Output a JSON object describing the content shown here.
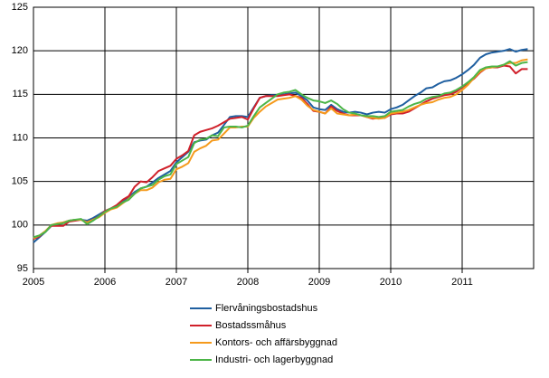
{
  "chart_data": {
    "type": "line",
    "x": [
      2005,
      2005.083,
      2005.167,
      2005.25,
      2005.333,
      2005.417,
      2005.5,
      2005.583,
      2005.667,
      2005.75,
      2005.833,
      2005.917,
      2006,
      2006.083,
      2006.167,
      2006.25,
      2006.333,
      2006.417,
      2006.5,
      2006.583,
      2006.667,
      2006.75,
      2006.833,
      2006.917,
      2007,
      2007.083,
      2007.167,
      2007.25,
      2007.333,
      2007.417,
      2007.5,
      2007.583,
      2007.667,
      2007.75,
      2007.833,
      2007.917,
      2008,
      2008.083,
      2008.167,
      2008.25,
      2008.333,
      2008.417,
      2008.5,
      2008.583,
      2008.667,
      2008.75,
      2008.833,
      2008.917,
      2009,
      2009.083,
      2009.167,
      2009.25,
      2009.333,
      2009.417,
      2009.5,
      2009.583,
      2009.667,
      2009.75,
      2009.833,
      2009.917,
      2010,
      2010.083,
      2010.167,
      2010.25,
      2010.333,
      2010.417,
      2010.5,
      2010.583,
      2010.667,
      2010.75,
      2010.833,
      2010.917,
      2011,
      2011.083,
      2011.167,
      2011.25,
      2011.333,
      2011.417,
      2011.5,
      2011.583,
      2011.667,
      2011.75,
      2011.833,
      2011.917
    ],
    "series": [
      {
        "name": "Flervåningsbostadshus",
        "color": "#1f5fa0",
        "values": [
          98.0,
          98.6,
          99.2,
          99.9,
          100.1,
          100.3,
          100.5,
          100.6,
          100.6,
          100.5,
          100.8,
          101.2,
          101.6,
          101.9,
          102.2,
          102.7,
          103.2,
          103.8,
          104.2,
          104.4,
          104.9,
          105.4,
          105.8,
          106.2,
          107.2,
          107.8,
          108.4,
          109.5,
          109.7,
          109.8,
          110.3,
          110.6,
          111.5,
          112.4,
          112.5,
          112.5,
          112.4,
          113.5,
          114.6,
          114.8,
          114.9,
          114.9,
          115.0,
          115.1,
          115.2,
          114.8,
          114.3,
          113.5,
          113.3,
          113.2,
          113.8,
          113.3,
          113.0,
          112.9,
          113.0,
          112.9,
          112.7,
          112.9,
          113.0,
          112.9,
          113.3,
          113.5,
          113.8,
          114.3,
          114.8,
          115.2,
          115.7,
          115.8,
          116.2,
          116.5,
          116.6,
          116.9,
          117.3,
          117.8,
          118.4,
          119.2,
          119.6,
          119.8,
          119.9,
          120.0,
          120.2,
          119.9,
          120.1,
          120.2
        ]
      },
      {
        "name": "Bostadssmåhus",
        "color": "#d0202a",
        "values": [
          98.4,
          98.7,
          99.3,
          99.9,
          99.9,
          99.9,
          100.4,
          100.5,
          100.6,
          100.3,
          100.6,
          101.0,
          101.6,
          101.9,
          102.3,
          102.9,
          103.3,
          104.4,
          105.0,
          104.9,
          105.5,
          106.2,
          106.5,
          106.8,
          107.6,
          108.0,
          108.5,
          110.3,
          110.7,
          110.9,
          111.1,
          111.4,
          111.8,
          112.2,
          112.3,
          112.4,
          112.1,
          113.4,
          114.6,
          114.8,
          114.8,
          114.8,
          114.9,
          115.0,
          114.8,
          114.6,
          113.9,
          113.1,
          113.0,
          112.8,
          113.6,
          113.1,
          112.8,
          112.6,
          112.6,
          112.6,
          112.4,
          112.2,
          112.3,
          112.3,
          112.7,
          112.8,
          112.8,
          113.0,
          113.4,
          113.8,
          114.2,
          114.5,
          114.7,
          114.9,
          115.0,
          115.3,
          115.8,
          116.3,
          116.8,
          117.5,
          118.0,
          118.1,
          118.1,
          118.3,
          118.2,
          117.4,
          117.9,
          117.9
        ]
      },
      {
        "name": "Kontors- och affärsbyggnad",
        "color": "#f59a1c",
        "values": [
          98.5,
          98.8,
          99.3,
          100.0,
          100.2,
          100.3,
          100.5,
          100.6,
          100.6,
          100.3,
          100.6,
          100.9,
          101.4,
          101.8,
          102.0,
          102.5,
          103.0,
          103.6,
          104.0,
          104.0,
          104.3,
          104.9,
          105.2,
          105.3,
          106.4,
          106.7,
          107.1,
          108.4,
          108.8,
          109.1,
          109.7,
          109.8,
          110.5,
          111.2,
          111.2,
          111.3,
          111.3,
          112.3,
          113.0,
          113.6,
          114.0,
          114.4,
          114.5,
          114.6,
          114.8,
          114.4,
          113.7,
          113.2,
          113.0,
          112.8,
          113.4,
          112.8,
          112.7,
          112.6,
          112.7,
          112.6,
          112.4,
          112.3,
          112.2,
          112.3,
          112.8,
          112.9,
          113.0,
          113.2,
          113.5,
          113.8,
          114.0,
          114.1,
          114.4,
          114.6,
          114.7,
          115.0,
          115.5,
          116.1,
          116.9,
          117.6,
          118.0,
          118.1,
          118.2,
          118.4,
          118.6,
          118.6,
          118.9,
          119.0
        ]
      },
      {
        "name": "Industri- och lagerbyggnad",
        "color": "#4cb548",
        "values": [
          98.6,
          98.8,
          99.2,
          100.0,
          100.1,
          100.2,
          100.5,
          100.6,
          100.7,
          100.1,
          100.5,
          101.0,
          101.5,
          101.9,
          102.1,
          102.6,
          102.9,
          103.6,
          104.2,
          104.4,
          104.6,
          105.2,
          105.6,
          105.8,
          107.0,
          107.4,
          107.8,
          109.4,
          109.8,
          109.9,
          110.3,
          110.2,
          111.2,
          111.3,
          111.3,
          111.2,
          111.4,
          112.5,
          113.5,
          114.0,
          114.5,
          115.0,
          115.2,
          115.3,
          115.5,
          115.0,
          114.6,
          114.3,
          114.2,
          114.0,
          114.3,
          113.9,
          113.3,
          112.9,
          112.8,
          112.6,
          112.5,
          112.5,
          112.4,
          112.5,
          113.0,
          113.1,
          113.2,
          113.6,
          113.9,
          114.1,
          114.5,
          114.7,
          114.8,
          115.1,
          115.2,
          115.5,
          115.9,
          116.4,
          117.0,
          117.8,
          118.1,
          118.2,
          118.2,
          118.4,
          118.8,
          118.3,
          118.6,
          118.7
        ]
      }
    ],
    "xlim": [
      2005,
      2012
    ],
    "xticks": [
      2005,
      2006,
      2007,
      2008,
      2009,
      2010,
      2011
    ],
    "ylim": [
      95,
      125
    ],
    "yticks": [
      95,
      100,
      105,
      110,
      115,
      120,
      125
    ],
    "grid": true,
    "legend": "bottom"
  }
}
